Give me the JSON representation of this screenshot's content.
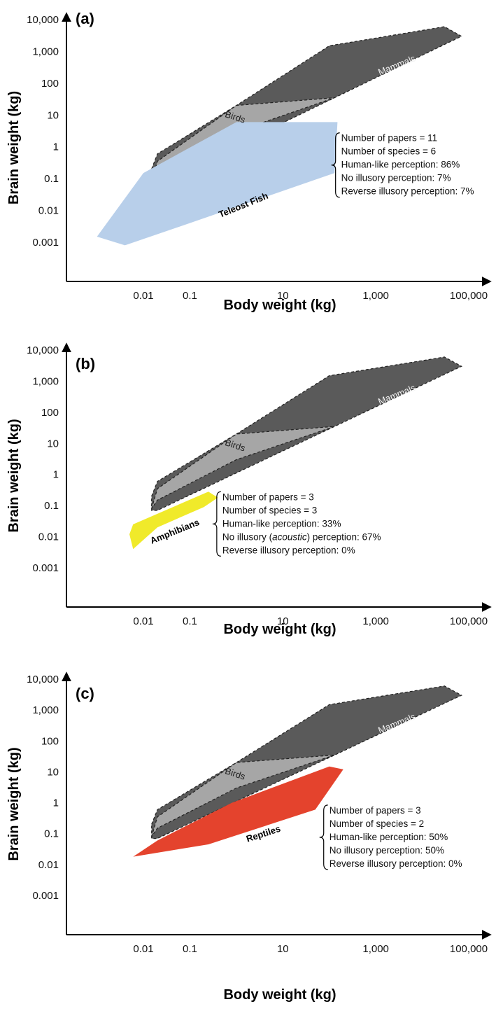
{
  "chart_data": [
    {
      "type": "area",
      "panel_label": "(a)",
      "xlabel": "Body weight (kg)",
      "ylabel": "Brain weight (kg)",
      "x_scale": "log",
      "y_scale": "log",
      "x_ticks": [
        "0.01",
        "0.1",
        "10",
        "1,000",
        "100,000"
      ],
      "y_ticks": [
        "10,000",
        "1,000",
        "100",
        "10",
        "1",
        "0.1",
        "0.01",
        "0.001"
      ],
      "grid": false,
      "regions": [
        {
          "name": "Mammals",
          "label": "Mammals",
          "color": "#5a5a5a",
          "points": [
            [
              0.015,
              0.2
            ],
            [
              0.02,
              0.6
            ],
            [
              1,
              20
            ],
            [
              100,
              1500
            ],
            [
              30000,
              6000
            ],
            [
              70000,
              3000
            ],
            [
              0.02,
              0.07
            ],
            [
              0.015,
              0.07
            ]
          ]
        },
        {
          "name": "Birds",
          "label": "Birds",
          "color": "#a6a6a6",
          "points": [
            [
              0.015,
              0.08
            ],
            [
              0.02,
              0.35
            ],
            [
              1,
              20
            ],
            [
              130,
              35
            ],
            [
              1,
              3
            ],
            [
              0.02,
              0.15
            ]
          ]
        },
        {
          "name": "Teleost Fish",
          "label": "Teleost Fish",
          "color": "#b8cfea",
          "points": [
            [
              0.001,
              0.0015
            ],
            [
              0.004,
              0.0008
            ],
            [
              0.1,
              0.004
            ],
            [
              130,
              0.15
            ],
            [
              150,
              6
            ],
            [
              1,
              6
            ],
            [
              0.01,
              0.15
            ]
          ]
        }
      ],
      "info_lines": [
        "Number of papers = 11",
        "Number of species = 6",
        "Human-like perception: 86%",
        "No illusory perception: 7%",
        "Reverse illusory perception: 7%"
      ],
      "info_pos": {
        "x": 180,
        "y": 1.5
      }
    },
    {
      "type": "area",
      "panel_label": "(b)",
      "xlabel": "Body weight (kg)",
      "ylabel": "Brain weight (kg)",
      "x_scale": "log",
      "y_scale": "log",
      "x_ticks": [
        "0.01",
        "0.1",
        "10",
        "1,000",
        "100,000"
      ],
      "y_ticks": [
        "10,000",
        "1,000",
        "100",
        "10",
        "1",
        "0.1",
        "0.01",
        "0.001"
      ],
      "grid": false,
      "regions": [
        {
          "name": "Mammals",
          "label": "Mammals",
          "color": "#5a5a5a",
          "points": [
            [
              0.015,
              0.2
            ],
            [
              0.02,
              0.6
            ],
            [
              1,
              20
            ],
            [
              100,
              1500
            ],
            [
              30000,
              6000
            ],
            [
              70000,
              3000
            ],
            [
              0.02,
              0.07
            ],
            [
              0.015,
              0.07
            ]
          ]
        },
        {
          "name": "Birds",
          "label": "Birds",
          "color": "#a6a6a6",
          "points": [
            [
              0.015,
              0.08
            ],
            [
              0.02,
              0.35
            ],
            [
              1,
              20
            ],
            [
              130,
              35
            ],
            [
              1,
              3
            ],
            [
              0.02,
              0.15
            ]
          ]
        },
        {
          "name": "Amphibians",
          "label": "Amphibians",
          "color": "#f0ea2a",
          "points": [
            [
              0.006,
              0.004
            ],
            [
              0.005,
              0.012
            ],
            [
              0.006,
              0.025
            ],
            [
              0.25,
              0.28
            ],
            [
              0.4,
              0.18
            ],
            [
              0.2,
              0.09
            ],
            [
              0.02,
              0.02
            ]
          ]
        }
      ],
      "info_lines": [
        "Number of papers = 3",
        "Number of species = 3",
        "Human-like perception: 33%",
        "No illusory (acoustic) perception: 67%",
        "Reverse illusory perception: 0%"
      ],
      "info_pos": {
        "x": 0.5,
        "y": 0.15
      }
    },
    {
      "type": "area",
      "panel_label": "(c)",
      "xlabel": "Body weight (kg)",
      "ylabel": "Brain weight (kg)",
      "x_scale": "log",
      "y_scale": "log",
      "x_ticks": [
        "0.01",
        "0.1",
        "10",
        "1,000",
        "100,000"
      ],
      "y_ticks": [
        "10,000",
        "1,000",
        "100",
        "10",
        "1",
        "0.1",
        "0.01",
        "0.001"
      ],
      "grid": false,
      "regions": [
        {
          "name": "Mammals",
          "label": "Mammals",
          "color": "#5a5a5a",
          "points": [
            [
              0.015,
              0.2
            ],
            [
              0.02,
              0.6
            ],
            [
              1,
              20
            ],
            [
              100,
              1500
            ],
            [
              30000,
              6000
            ],
            [
              70000,
              3000
            ],
            [
              0.02,
              0.07
            ],
            [
              0.015,
              0.07
            ]
          ]
        },
        {
          "name": "Birds",
          "label": "Birds",
          "color": "#a6a6a6",
          "points": [
            [
              0.015,
              0.08
            ],
            [
              0.02,
              0.35
            ],
            [
              1,
              20
            ],
            [
              130,
              35
            ],
            [
              1,
              3
            ],
            [
              0.02,
              0.15
            ]
          ]
        },
        {
          "name": "Reptiles",
          "label": "Reptiles",
          "color": "#e4432d",
          "points": [
            [
              0.006,
              0.018
            ],
            [
              0.02,
              0.06
            ],
            [
              0.8,
              1
            ],
            [
              100,
              15
            ],
            [
              200,
              12
            ],
            [
              50,
              0.6
            ],
            [
              0.25,
              0.045
            ]
          ]
        }
      ],
      "info_lines": [
        "Number of papers = 3",
        "Number of species = 2",
        "Human-like perception: 50%",
        "No illusory perception: 50%",
        "Reverse illusory perception: 0%"
      ],
      "info_pos": {
        "x": 100,
        "y": 0.45
      }
    }
  ]
}
